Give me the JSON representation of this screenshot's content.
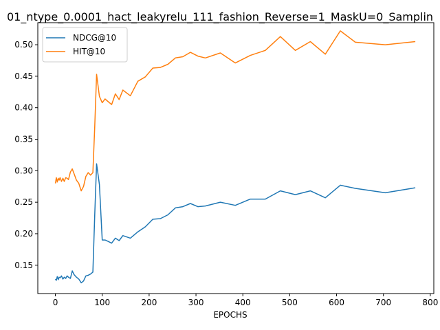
{
  "chart_data": {
    "type": "line",
    "title": "01_ntype_0.0001_hact_leakyrelu_111_fashion_Reverse=1_MaskU=0_Samplin",
    "xlabel": "EPOCHS",
    "ylabel": "",
    "xlim": [
      -37.5,
      807.5
    ],
    "ylim": [
      0.105,
      0.535
    ],
    "xticks": [
      0,
      100,
      200,
      300,
      400,
      500,
      600,
      700,
      800
    ],
    "xtick_labels": [
      "0",
      "100",
      "200",
      "300",
      "400",
      "500",
      "600",
      "700",
      "800"
    ],
    "yticks": [
      0.15,
      0.2,
      0.25,
      0.3,
      0.35,
      0.4,
      0.45,
      0.5
    ],
    "ytick_labels": [
      "0.15",
      "0.20",
      "0.25",
      "0.30",
      "0.35",
      "0.40",
      "0.45",
      "0.50"
    ],
    "grid": false,
    "legend_position": "top-left",
    "series": [
      {
        "name": "NDCG@10",
        "color": "#1f77b4",
        "x": [
          0,
          2,
          4,
          6,
          8,
          10,
          13,
          16,
          19,
          22,
          25,
          28,
          32,
          36,
          40,
          45,
          50,
          55,
          60,
          65,
          70,
          75,
          80,
          84,
          88,
          94,
          100,
          106,
          112,
          120,
          128,
          136,
          144,
          160,
          176,
          192,
          208,
          224,
          240,
          256,
          272,
          288,
          304,
          320,
          352,
          384,
          416,
          448,
          480,
          512,
          544,
          576,
          608,
          640,
          704,
          768
        ],
        "y": [
          0.128,
          0.126,
          0.132,
          0.127,
          0.131,
          0.13,
          0.133,
          0.128,
          0.131,
          0.129,
          0.133,
          0.131,
          0.129,
          0.141,
          0.135,
          0.131,
          0.128,
          0.122,
          0.125,
          0.133,
          0.134,
          0.136,
          0.139,
          0.23,
          0.311,
          0.278,
          0.19,
          0.19,
          0.188,
          0.185,
          0.193,
          0.189,
          0.197,
          0.193,
          0.203,
          0.211,
          0.223,
          0.224,
          0.23,
          0.241,
          0.243,
          0.248,
          0.243,
          0.244,
          0.25,
          0.245,
          0.255,
          0.255,
          0.268,
          0.262,
          0.268,
          0.257,
          0.277,
          0.272,
          0.265,
          0.273
        ]
      },
      {
        "name": "HIT@10",
        "color": "#ff7f0e",
        "x": [
          0,
          2,
          4,
          6,
          8,
          10,
          13,
          16,
          19,
          22,
          25,
          28,
          32,
          36,
          40,
          45,
          50,
          55,
          60,
          65,
          70,
          75,
          80,
          84,
          88,
          94,
          100,
          106,
          112,
          120,
          128,
          136,
          144,
          160,
          176,
          192,
          208,
          224,
          240,
          256,
          272,
          288,
          304,
          320,
          352,
          384,
          416,
          448,
          480,
          512,
          544,
          576,
          608,
          640,
          704,
          768
        ],
        "y": [
          0.28,
          0.289,
          0.282,
          0.288,
          0.285,
          0.289,
          0.283,
          0.288,
          0.283,
          0.289,
          0.288,
          0.286,
          0.298,
          0.303,
          0.295,
          0.285,
          0.28,
          0.268,
          0.275,
          0.291,
          0.297,
          0.293,
          0.297,
          0.37,
          0.453,
          0.418,
          0.408,
          0.414,
          0.41,
          0.405,
          0.422,
          0.413,
          0.428,
          0.419,
          0.442,
          0.449,
          0.463,
          0.464,
          0.469,
          0.479,
          0.481,
          0.488,
          0.482,
          0.479,
          0.487,
          0.471,
          0.483,
          0.491,
          0.513,
          0.491,
          0.505,
          0.485,
          0.522,
          0.504,
          0.5,
          0.505
        ]
      }
    ]
  }
}
